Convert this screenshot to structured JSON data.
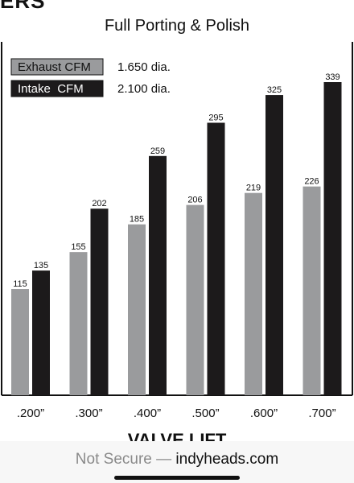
{
  "header_partial": "ERS",
  "chart_data": {
    "type": "bar",
    "title": "Full Porting & Polish",
    "xlabel": "VALVE LIFT",
    "categories": [
      ".200”",
      ".300”",
      ".400”",
      ".500”",
      ".600”",
      ".700”"
    ],
    "series": [
      {
        "name": "Exhaust CFM",
        "note": "1.650 dia.",
        "color": "#9a9b9d",
        "values": [
          115,
          155,
          185,
          206,
          219,
          226
        ]
      },
      {
        "name": "Intake  CFM",
        "note": "2.100 dia.",
        "color": "#1c1a1b",
        "values": [
          135,
          202,
          259,
          295,
          325,
          339
        ]
      }
    ],
    "ylim": [
      0,
      400
    ],
    "grid": false,
    "legend": "top-left"
  },
  "browser": {
    "security_label": "Not Secure —",
    "domain": "indyheads.com"
  }
}
